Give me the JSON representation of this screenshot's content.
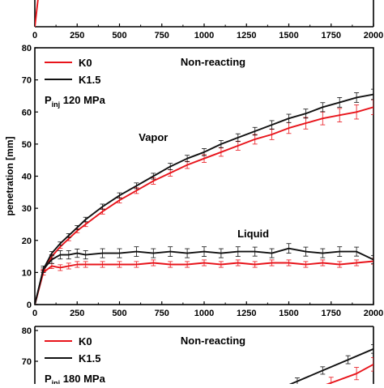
{
  "chart_data": [
    {
      "type": "line",
      "panel": "top (cropped)",
      "xlim": [
        0,
        2000
      ],
      "x_ticks": [
        "0",
        "250",
        "500",
        "750",
        "1000",
        "1250",
        "1500",
        "1750",
        "2000"
      ],
      "series": [
        {
          "name": "K0",
          "color": "#e8141b",
          "x": [
            0,
            20,
            40,
            60
          ],
          "y": [
            0,
            40,
            55,
            65
          ]
        }
      ]
    },
    {
      "type": "line",
      "panel": "middle",
      "title": "Non-reacting",
      "condition_prefix": "P",
      "condition_sub": "inj",
      "condition_value": "120 MPa",
      "ylabel": "penetration [mm]",
      "xlim": [
        0,
        2000
      ],
      "ylim": [
        0,
        80
      ],
      "x_ticks": [
        "0",
        "250",
        "500",
        "750",
        "1000",
        "1250",
        "1500",
        "1750",
        "2000"
      ],
      "y_ticks": [
        "0",
        "10",
        "20",
        "30",
        "40",
        "50",
        "60",
        "70",
        "80"
      ],
      "legend_position": "top-left",
      "annotations": [
        {
          "text": "Vapor",
          "x": 700,
          "y": 51
        },
        {
          "text": "Liquid",
          "x": 1290,
          "y": 21
        }
      ],
      "series": [
        {
          "name": "K0",
          "phase": "vapor",
          "color": "#e8141b",
          "x": [
            0,
            50,
            100,
            150,
            200,
            250,
            300,
            400,
            500,
            600,
            700,
            800,
            900,
            1000,
            1100,
            1200,
            1300,
            1400,
            1500,
            1600,
            1700,
            1800,
            1900,
            2000
          ],
          "y": [
            0,
            10.5,
            15,
            18,
            20.5,
            23,
            25,
            29,
            32.5,
            35.5,
            38.5,
            41,
            43.5,
            45.5,
            47.5,
            49.5,
            51.5,
            53,
            55,
            56.5,
            58,
            59,
            60,
            61.5
          ],
          "err": [
            0,
            0.4,
            0.5,
            0.5,
            0.6,
            0.6,
            0.7,
            0.8,
            0.8,
            0.9,
            1.0,
            1.0,
            1.1,
            1.2,
            1.3,
            1.4,
            1.5,
            1.6,
            1.7,
            1.8,
            2.0,
            2.1,
            2.2,
            2.3
          ]
        },
        {
          "name": "K1.5",
          "phase": "vapor",
          "color": "#111111",
          "x": [
            0,
            50,
            100,
            150,
            200,
            250,
            300,
            400,
            500,
            600,
            700,
            800,
            900,
            1000,
            1100,
            1200,
            1300,
            1400,
            1500,
            1600,
            1700,
            1800,
            1900,
            2000
          ],
          "y": [
            0,
            11,
            16,
            19,
            21.5,
            24,
            26.5,
            30.5,
            34,
            37,
            40,
            43,
            45.5,
            47.5,
            50,
            52,
            54,
            56,
            58,
            59.5,
            61.5,
            63,
            64.5,
            65.5
          ],
          "err": [
            0,
            0.4,
            0.5,
            0.5,
            0.6,
            0.6,
            0.7,
            0.8,
            0.8,
            0.9,
            0.9,
            1.0,
            1.0,
            1.1,
            1.1,
            1.2,
            1.2,
            1.3,
            1.3,
            1.4,
            1.4,
            1.5,
            1.5,
            1.6
          ]
        },
        {
          "name": "K0",
          "phase": "liquid",
          "color": "#e8141b",
          "x": [
            0,
            50,
            100,
            150,
            200,
            250,
            300,
            400,
            500,
            600,
            700,
            800,
            900,
            1000,
            1100,
            1200,
            1300,
            1400,
            1500,
            1600,
            1700,
            1800,
            1900,
            2000
          ],
          "y": [
            0,
            10,
            12,
            11.5,
            12,
            12.5,
            12.5,
            12.5,
            12.5,
            12.5,
            13,
            12.5,
            12.5,
            13,
            12.5,
            13,
            12.5,
            13,
            13,
            12.5,
            13,
            12.5,
            13,
            13.5
          ],
          "err": [
            0,
            0.8,
            0.8,
            0.9,
            0.9,
            0.9,
            0.9,
            0.9,
            0.9,
            0.9,
            0.9,
            0.9,
            0.9,
            0.9,
            0.9,
            0.9,
            0.9,
            0.9,
            0.9,
            0.9,
            0.9,
            0.9,
            0.9,
            0.9
          ]
        },
        {
          "name": "K1.5",
          "phase": "liquid",
          "color": "#111111",
          "x": [
            0,
            50,
            100,
            150,
            200,
            250,
            300,
            400,
            500,
            600,
            700,
            800,
            900,
            1000,
            1100,
            1200,
            1300,
            1400,
            1500,
            1600,
            1700,
            1800,
            1900,
            2000
          ],
          "y": [
            0,
            11,
            14,
            15.5,
            15.5,
            16,
            15.5,
            16,
            16,
            16.5,
            16,
            16.5,
            16,
            16.5,
            16,
            16.5,
            16.5,
            16,
            17.5,
            16.5,
            16,
            16.5,
            16.5,
            14
          ],
          "err": [
            0,
            1.0,
            1.2,
            1.3,
            1.3,
            1.3,
            1.3,
            1.4,
            1.4,
            1.5,
            1.4,
            1.5,
            1.4,
            1.5,
            1.4,
            1.5,
            1.4,
            1.4,
            1.5,
            1.4,
            1.4,
            1.5,
            1.4,
            1.3
          ]
        }
      ]
    },
    {
      "type": "line",
      "panel": "bottom (cropped)",
      "title": "Non-reacting",
      "condition_prefix": "P",
      "condition_sub": "inj",
      "condition_value": "180 MPa",
      "xlim": [
        0,
        2000
      ],
      "ylim": [
        60,
        80
      ],
      "y_ticks": [
        "70",
        "80"
      ],
      "legend_position": "top-left",
      "series": [
        {
          "name": "K0",
          "color": "#e8141b",
          "x": [
            1450,
            1600,
            1750,
            1900,
            2000
          ],
          "y": [
            57,
            60,
            63,
            66,
            69
          ],
          "err": [
            1.5,
            1.6,
            1.8,
            2.0,
            2.2
          ]
        },
        {
          "name": "K1.5",
          "color": "#111111",
          "x": [
            1400,
            1550,
            1700,
            1850,
            2000
          ],
          "y": [
            60,
            63.5,
            67,
            70.5,
            74
          ],
          "err": [
            1.0,
            1.1,
            1.2,
            1.3,
            1.4
          ]
        }
      ]
    }
  ]
}
